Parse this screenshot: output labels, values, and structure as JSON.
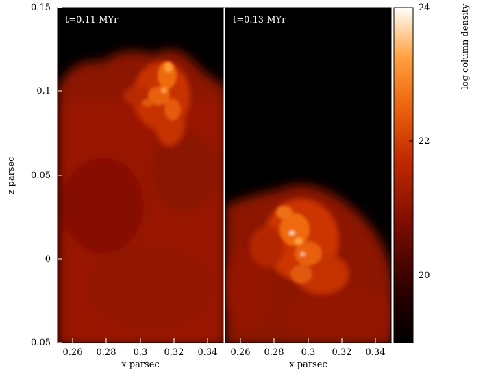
{
  "figure": {
    "panels": [
      {
        "label": "t=0.11 MYr"
      },
      {
        "label": "t=0.13 MYr"
      }
    ],
    "x_axis": {
      "label": "x parsec",
      "ticks": [
        "0.26",
        "0.28",
        "0.3",
        "0.32",
        "0.34"
      ]
    },
    "y_axis": {
      "label": "z parsec",
      "ticks": [
        "0.15",
        "0.1",
        "0.05",
        "0",
        "-0.05"
      ]
    },
    "colorbar": {
      "label": "log column density",
      "ticks": [
        "24",
        "22",
        "20"
      ],
      "range": [
        19,
        24
      ],
      "colors": [
        "#000000",
        "#3a0000",
        "#8a1000",
        "#cc3000",
        "#ee6a10",
        "#ff9a30",
        "#ffd8a0",
        "#ffffff"
      ]
    }
  }
}
